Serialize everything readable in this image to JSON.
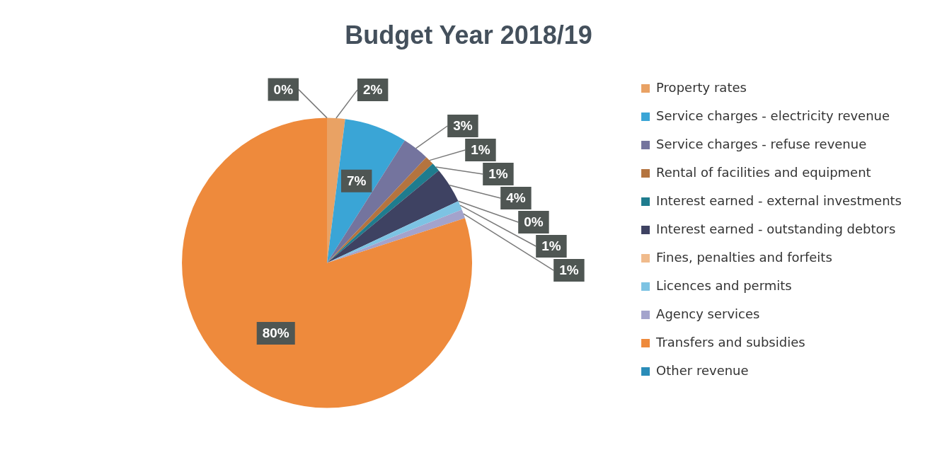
{
  "chart_data": {
    "type": "pie",
    "title": "Budget Year 2018/19",
    "categories": [
      "Property rates",
      "Service charges - electricity revenue",
      "Service charges - refuse revenue",
      "Rental of facilities and equipment",
      "Interest earned - external investments",
      "Interest earned - outstanding debtors",
      "Fines, penalties and forfeits",
      "Licences and permits",
      "Agency services",
      "Transfers and subsidies",
      "Other revenue"
    ],
    "values": [
      2,
      7,
      3,
      1,
      1,
      4,
      0,
      1,
      1,
      80,
      0
    ],
    "value_labels": [
      "2%",
      "7%",
      "3%",
      "1%",
      "1%",
      "4%",
      "0%",
      "1%",
      "1%",
      "80%",
      "0%"
    ],
    "colors": [
      "#e9a264",
      "#3aa5d6",
      "#74749e",
      "#b4743f",
      "#1f7c8e",
      "#3e4262",
      "#f0bb8c",
      "#7dc3e3",
      "#a3a3cc",
      "#ee8a3c",
      "#2a8cb8"
    ],
    "legend": "right"
  }
}
